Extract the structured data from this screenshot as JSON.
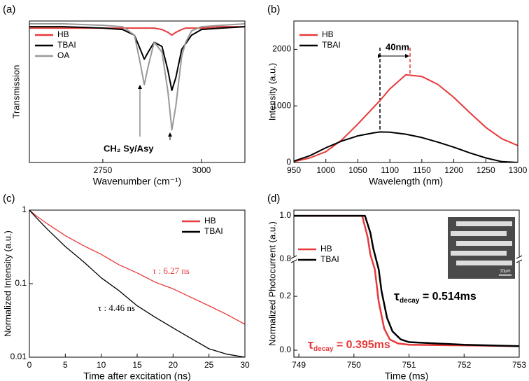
{
  "chart_data": [
    {
      "type": "line",
      "label": "(a)",
      "xlabel": "Wavenumber (cm⁻¹)",
      "ylabel": "Transmission",
      "xlim": [
        2564,
        3110
      ],
      "xticks": [
        2750,
        3000
      ],
      "ylim": [
        0,
        1
      ],
      "legend": "upper left",
      "annotations": [
        {
          "text": "CH₂ Sy/Asy",
          "color": "#000000"
        }
      ],
      "x": [
        2564,
        2650,
        2750,
        2800,
        2830,
        2845,
        2855,
        2865,
        2880,
        2900,
        2915,
        2925,
        2935,
        2950,
        2960,
        2975,
        3000,
        3050,
        3110
      ],
      "series": [
        {
          "name": "HB",
          "color": "#e8393a",
          "values": [
            0.95,
            0.95,
            0.95,
            0.95,
            0.95,
            0.95,
            0.95,
            0.95,
            0.95,
            0.94,
            0.92,
            0.9,
            0.92,
            0.94,
            0.95,
            0.95,
            0.95,
            0.96,
            0.96
          ]
        },
        {
          "name": "TBAI",
          "color": "#000000",
          "values": [
            0.96,
            0.96,
            0.95,
            0.94,
            0.9,
            0.8,
            0.73,
            0.78,
            0.85,
            0.82,
            0.65,
            0.51,
            0.6,
            0.8,
            0.84,
            0.9,
            0.94,
            0.95,
            0.96
          ]
        },
        {
          "name": "OA",
          "color": "#999999",
          "values": [
            0.98,
            0.98,
            0.97,
            0.96,
            0.9,
            0.7,
            0.55,
            0.68,
            0.85,
            0.78,
            0.5,
            0.23,
            0.4,
            0.75,
            0.85,
            0.93,
            0.96,
            0.97,
            0.98
          ]
        }
      ]
    },
    {
      "type": "line",
      "label": "(b)",
      "xlabel": "Wavelength (nm)",
      "ylabel": "Intensity (a.u.)",
      "xlim": [
        950,
        1300
      ],
      "xticks": [
        950,
        1000,
        1050,
        1100,
        1150,
        1200,
        1250,
        1300
      ],
      "ylim": [
        0,
        2500
      ],
      "yticks": [
        0,
        1000,
        2000
      ],
      "legend": "upper left",
      "annotations": [
        {
          "text": "40nm",
          "color": "#000000"
        }
      ],
      "x": [
        950,
        975,
        1000,
        1025,
        1050,
        1075,
        1085,
        1100,
        1125,
        1150,
        1175,
        1200,
        1225,
        1250,
        1275,
        1300
      ],
      "series": [
        {
          "name": "HB",
          "color": "#e8393a",
          "values": [
            15,
            80,
            190,
            400,
            680,
            980,
            1100,
            1300,
            1550,
            1520,
            1380,
            1150,
            880,
            620,
            420,
            300
          ]
        },
        {
          "name": "TBAI",
          "color": "#000000",
          "values": [
            25,
            120,
            260,
            380,
            470,
            525,
            540,
            535,
            500,
            440,
            360,
            270,
            170,
            80,
            15,
            0
          ]
        }
      ]
    },
    {
      "type": "line",
      "label": "(c)",
      "xlabel": "Time after excitation (ns)",
      "ylabel": "Normalized Intensity (a.u.)",
      "xlim": [
        0,
        30
      ],
      "xticks": [
        0,
        5,
        10,
        15,
        20,
        25,
        30
      ],
      "ylim": [
        0.01,
        1
      ],
      "yticks": [
        0.01,
        0.1,
        1
      ],
      "ylog": true,
      "legend": "upper right",
      "annotations": [
        {
          "text": "τ : 6.27 ns",
          "color": "#e8393a"
        },
        {
          "text": "τ : 4.46 ns",
          "color": "#000000"
        }
      ],
      "x": [
        0,
        1,
        2.5,
        5,
        7.5,
        10,
        12.5,
        15,
        17.5,
        20,
        22.5,
        25,
        27.5,
        30
      ],
      "series": [
        {
          "name": "HB",
          "color": "#e8393a",
          "values": [
            1,
            0.83,
            0.65,
            0.45,
            0.33,
            0.25,
            0.18,
            0.14,
            0.105,
            0.085,
            0.065,
            0.05,
            0.038,
            0.028
          ]
        },
        {
          "name": "TBAI",
          "color": "#000000",
          "values": [
            1,
            0.78,
            0.55,
            0.32,
            0.2,
            0.12,
            0.08,
            0.05,
            0.035,
            0.025,
            0.018,
            0.013,
            0.011,
            0.01
          ]
        }
      ]
    },
    {
      "type": "line",
      "label": "(d)",
      "xlabel": "Time (ms)",
      "ylabel": "Normalized Photocurrent (a.u.)",
      "xlim": [
        748.91,
        753
      ],
      "xticks": [
        749,
        750,
        751,
        752,
        753
      ],
      "ylim": [
        -0.026,
        1.026
      ],
      "ybreak": [
        0.338,
        0.8
      ],
      "yticks": [
        {
          "value": 0,
          "label": "0.0"
        },
        0.2,
        0.8,
        {
          "value": 1,
          "label": "1.0"
        }
      ],
      "legend": "center left",
      "inset_scale": "10μm",
      "annotations": [
        {
          "symbol": "τ",
          "subscript": "decay",
          "text": " = 0.514ms",
          "color": "#000000"
        },
        {
          "symbol": "τ",
          "subscript": "decay",
          "text": " = 0.395ms",
          "color": "#e8393a"
        }
      ],
      "series": [
        {
          "name": "HB",
          "color": "#e8393a",
          "x": [
            748.91,
            750.15,
            750.25,
            750.3,
            750.38,
            750.45,
            750.55,
            750.65,
            750.8,
            751,
            752,
            753
          ],
          "values": [
            1,
            1,
            0.9,
            0.82,
            0.3,
            0.18,
            0.08,
            0.04,
            0.025,
            0.02,
            0.018,
            0.015
          ]
        },
        {
          "name": "TBAI",
          "color": "#000000",
          "x": [
            748.91,
            750.2,
            750.3,
            750.35,
            750.45,
            750.5,
            750.6,
            750.7,
            750.85,
            751,
            752,
            753
          ],
          "values": [
            1,
            1,
            0.92,
            0.85,
            0.3,
            0.22,
            0.12,
            0.07,
            0.04,
            0.03,
            0.02,
            0.015
          ]
        }
      ]
    }
  ]
}
